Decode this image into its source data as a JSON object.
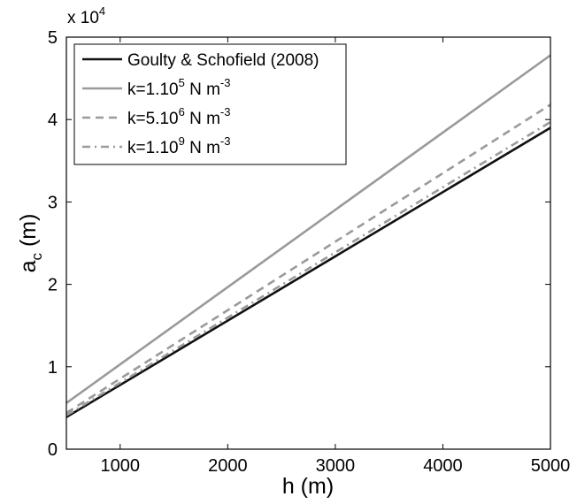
{
  "chart_data": {
    "type": "line",
    "xlabel": "h (m)",
    "ylabel": {
      "main": "a",
      "sub": "c",
      "unit": " (m)"
    },
    "y_exponent": {
      "prefix": "x 10",
      "power": "4"
    },
    "xlim": [
      500,
      5000
    ],
    "ylim": [
      0,
      5
    ],
    "xticks": [
      1000,
      2000,
      3000,
      4000,
      5000
    ],
    "yticks": [
      0,
      1,
      2,
      3,
      4,
      5
    ],
    "grid": false,
    "legend_position": "top-left",
    "series": [
      {
        "name": "Goulty & Schofield (2008)",
        "label": {
          "pre": "Goulty & Schofield (2008)"
        },
        "color": "#111111",
        "dash": "solid",
        "x": [
          500,
          5000
        ],
        "y": [
          0.39,
          3.9
        ]
      },
      {
        "name": "k=1.10^5 N m^-3",
        "label": {
          "pre": "k=1.10",
          "sup1": "5",
          "mid": " N m",
          "sup2": "-3"
        },
        "color": "#9a9a9a",
        "dash": "solid",
        "x": [
          500,
          5000
        ],
        "y": [
          0.56,
          4.78
        ]
      },
      {
        "name": "k=5.10^6 N m^-3",
        "label": {
          "pre": "k=5.10",
          "sup1": "6",
          "mid": " N m",
          "sup2": "-3"
        },
        "color": "#9a9a9a",
        "dash": "dashed",
        "x": [
          500,
          5000
        ],
        "y": [
          0.44,
          4.18
        ]
      },
      {
        "name": "k=1.10^9 N m^-3",
        "label": {
          "pre": "k=1.10",
          "sup1": "9",
          "mid": " N m",
          "sup2": "-3"
        },
        "color": "#9a9a9a",
        "dash": "dashdot",
        "x": [
          500,
          5000
        ],
        "y": [
          0.41,
          3.97
        ]
      }
    ]
  }
}
